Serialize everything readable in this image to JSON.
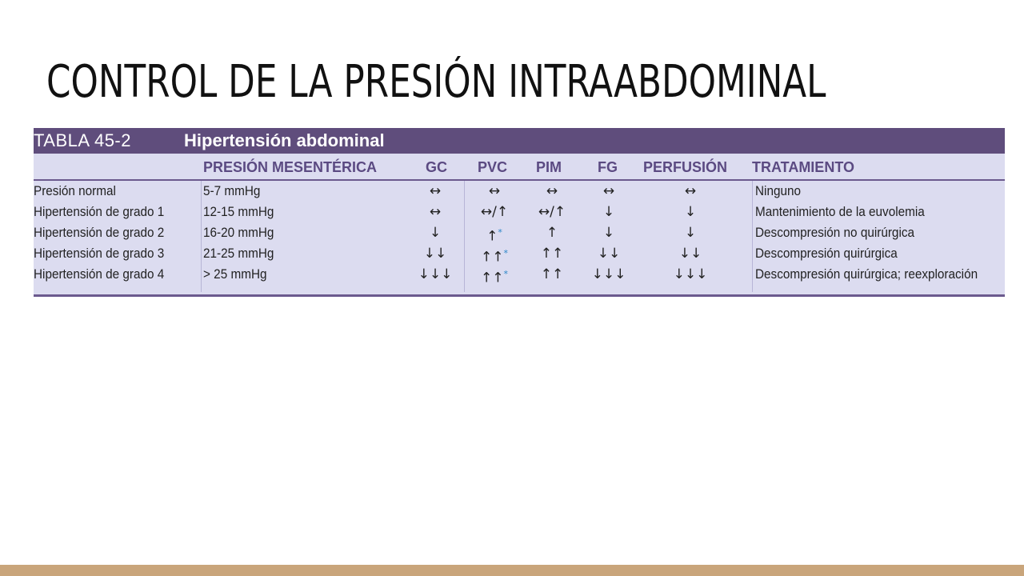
{
  "slide": {
    "title": "CONTROL DE LA PRESIÓN INTRAABDOMINAL"
  },
  "table": {
    "number": "TABLA 45-2",
    "caption": "Hipertensión abdominal",
    "columns": [
      "",
      "PRESIÓN MESENTÉRICA",
      "GC",
      "PVC",
      "PIM",
      "FG",
      "PERFUSIÓN",
      "TRATAMIENTO"
    ],
    "rows": [
      {
        "label": "Presión normal",
        "pressure": "5-7 mmHg",
        "gc": "↔",
        "pvc": "↔",
        "pim": "↔",
        "fg": "↔",
        "perfusion": "↔",
        "treatment": "Ninguno"
      },
      {
        "label": "Hipertensión de grado 1",
        "pressure": "12-15 mmHg",
        "gc": "↔",
        "pvc": "↔/↑",
        "pim": "↔/↑",
        "fg": "↓",
        "perfusion": "↓",
        "treatment": "Mantenimiento de la euvolemia"
      },
      {
        "label": "Hipertensión de grado 2",
        "pressure": "16-20 mmHg",
        "gc": "↓",
        "pvc": "↑",
        "pvc_mark": "*",
        "pim": "↑",
        "fg": "↓",
        "perfusion": "↓",
        "treatment": "Descompresión no quirúrgica"
      },
      {
        "label": "Hipertensión de grado 3",
        "pressure": "21-25 mmHg",
        "gc": "↓↓",
        "pvc": "↑↑",
        "pvc_mark": "*",
        "pim": "↑↑",
        "fg": "↓↓",
        "perfusion": "↓↓",
        "treatment": "Descompresión quirúrgica"
      },
      {
        "label": "Hipertensión de grado 4",
        "pressure": "> 25 mmHg",
        "gc": "↓↓↓",
        "pvc": "↑↑",
        "pvc_mark": "*",
        "pim": "↑↑",
        "fg": "↓↓↓",
        "perfusion": "↓↓↓",
        "treatment": "Descompresión quirúrgica; reexploración"
      }
    ]
  },
  "colors": {
    "header_bar": "#5f4d7c",
    "table_background": "#dcdcf0",
    "column_header_text": "#5b4a82",
    "footnote_mark": "#2a86c8",
    "bottom_band": "#c9a57b"
  }
}
